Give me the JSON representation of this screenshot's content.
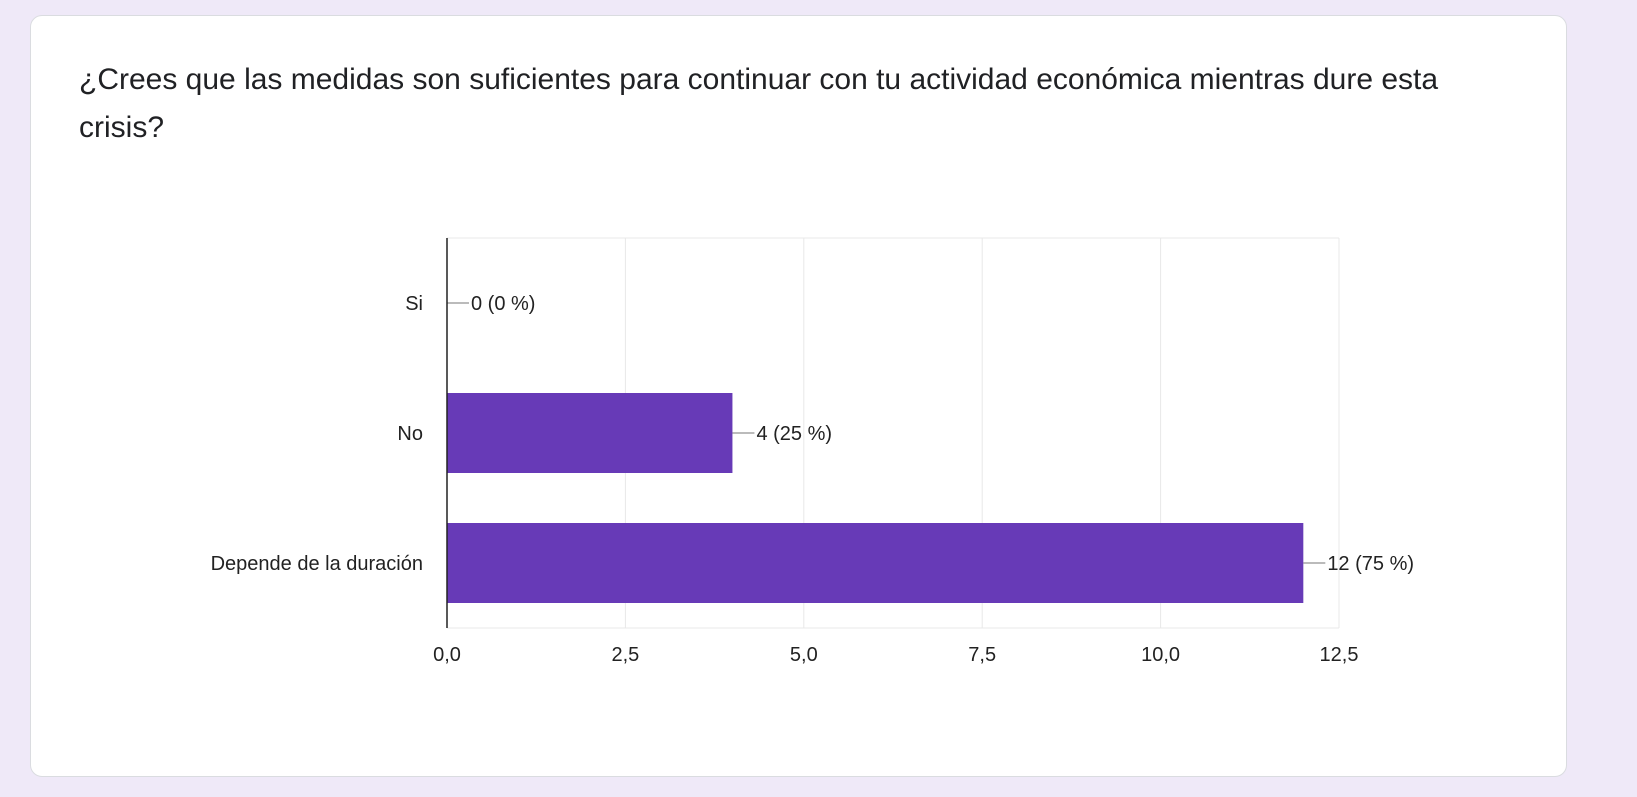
{
  "question": {
    "title": "¿Crees que las medidas son suficientes para continuar con tu actividad económica mientras dure esta crisis?"
  },
  "colors": {
    "bar": "#673ab7",
    "page_background": "#efe9f8",
    "card_background": "#ffffff",
    "grid": "#e8e8e8",
    "axis": "#222222",
    "text": "#202124"
  },
  "chart_data": {
    "type": "bar",
    "orientation": "horizontal",
    "categories": [
      "Si",
      "No",
      "Depende de la duración"
    ],
    "values": [
      0,
      4,
      12
    ],
    "data_labels": [
      "0 (0 %)",
      "4 (25 %)",
      "12 (75 %)"
    ],
    "xlim": [
      0,
      12.5
    ],
    "ticks": [
      0,
      2.5,
      5,
      7.5,
      10,
      12.5
    ],
    "tick_labels": [
      "0,0",
      "2,5",
      "5,0",
      "7,5",
      "10,0",
      "12,5"
    ],
    "grid": true,
    "legend": "none"
  }
}
